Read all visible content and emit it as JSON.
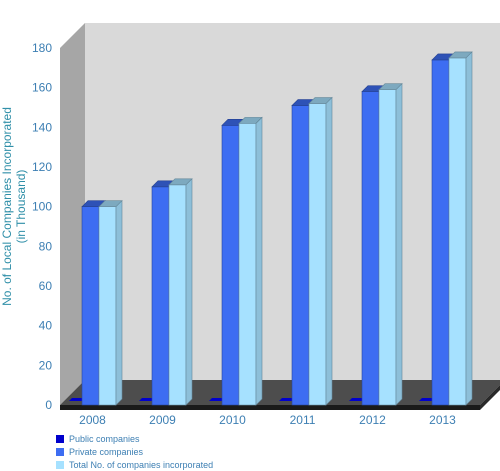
{
  "chart_data": {
    "type": "bar",
    "categories": [
      "2008",
      "2009",
      "2010",
      "2011",
      "2012",
      "2013"
    ],
    "series": [
      {
        "name": "Public companies",
        "values": [
          0.4,
          0.4,
          0.4,
          0.4,
          0.4,
          0.4
        ],
        "color": "#0000cc"
      },
      {
        "name": "Private companies",
        "values": [
          100,
          110,
          141,
          151,
          158,
          174
        ],
        "color": "#3d6df2"
      },
      {
        "name": "Total No. of companies incorporated",
        "values": [
          100,
          111,
          142,
          152,
          159,
          175
        ],
        "color": "#a6e1ff"
      }
    ],
    "title": "",
    "xlabel": "",
    "ylabel": [
      "No. of Local Companies Incorporated",
      "(in Thousand)"
    ],
    "ylim": [
      0,
      180
    ],
    "yticks": [
      0,
      20,
      40,
      60,
      80,
      100,
      120,
      140,
      160,
      180
    ],
    "grid": false,
    "legend_position": "bottom-left",
    "style": "3d"
  }
}
